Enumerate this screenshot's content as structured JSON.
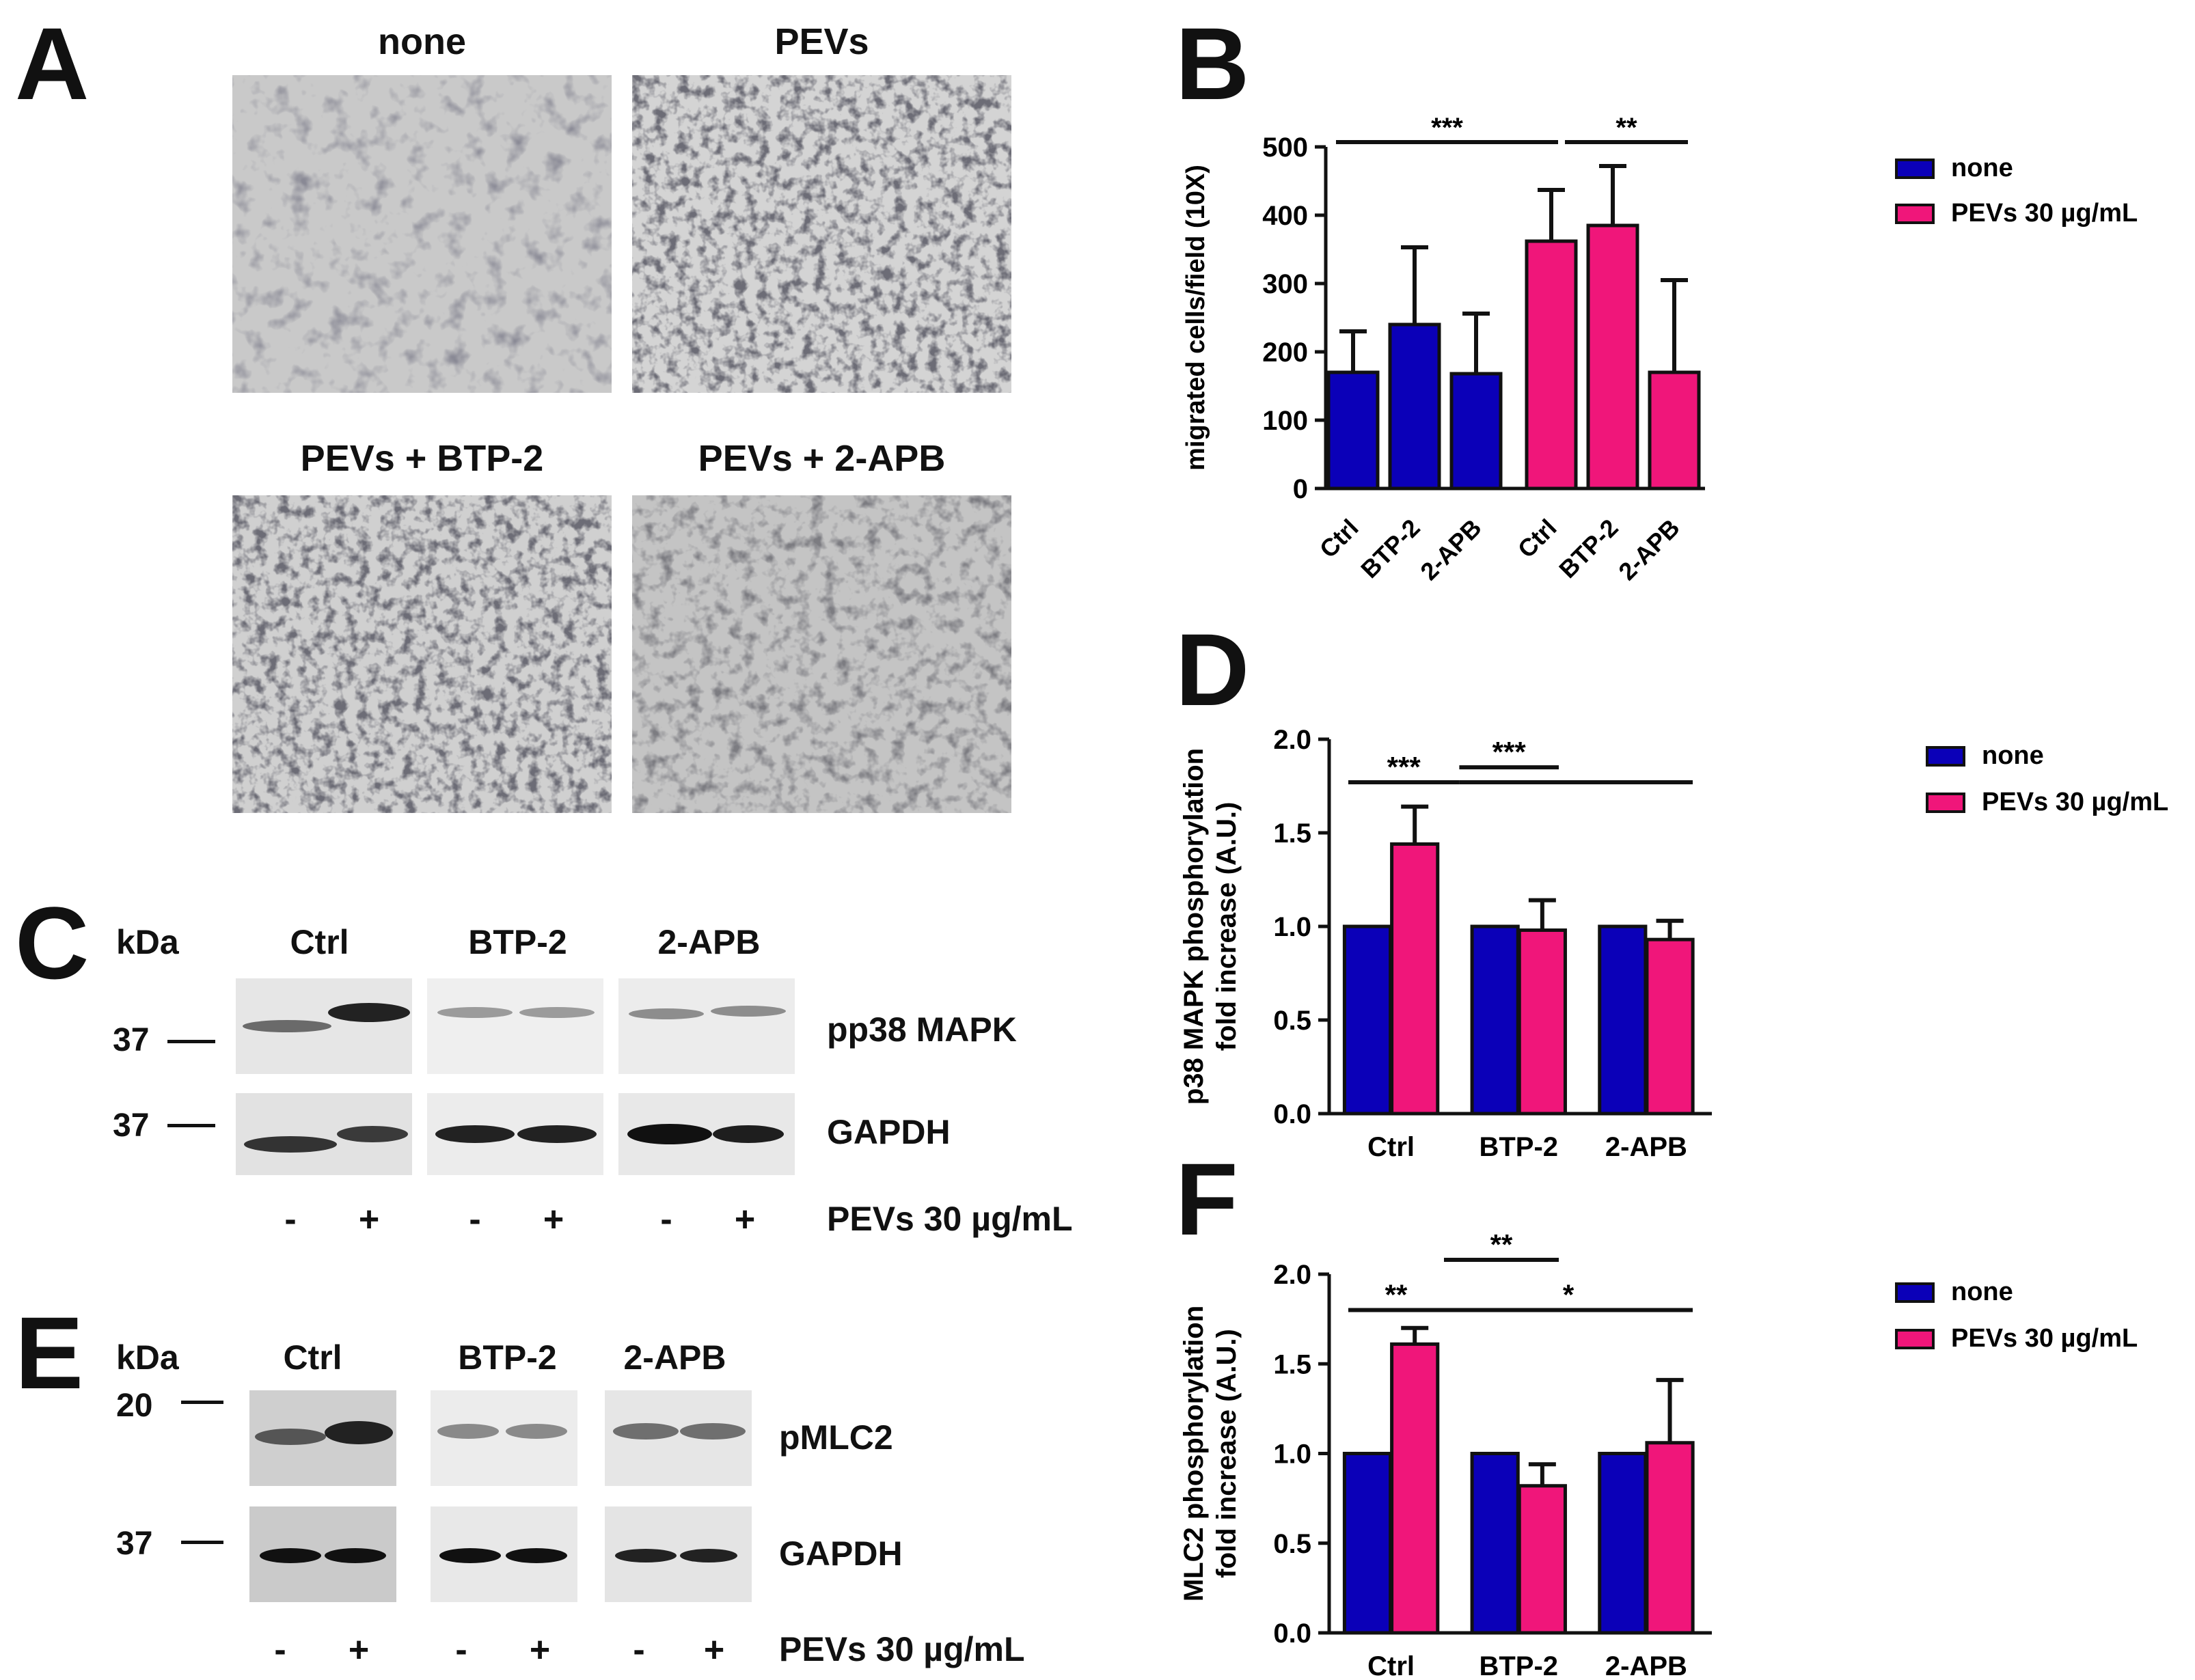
{
  "colors": {
    "none": "#0b00b8",
    "pevs": "#f0167a",
    "axis": "#111111"
  },
  "panelA": {
    "letter": "A",
    "titles": [
      "none",
      "PEVs",
      "PEVs + BTP-2",
      "PEVs + 2-APB"
    ]
  },
  "panelC": {
    "letter": "C",
    "kda": "kDa",
    "lanes": [
      "Ctrl",
      "BTP-2",
      "2-APB"
    ],
    "markers": [
      "37",
      "37"
    ],
    "bands": [
      "pp38 MAPK",
      "GAPDH"
    ],
    "signs": [
      "-",
      "+",
      "-",
      "+",
      "-",
      "+"
    ],
    "treatment": "PEVs 30 µg/mL"
  },
  "panelE": {
    "letter": "E",
    "kda": "kDa",
    "lanes": [
      "Ctrl",
      "BTP-2",
      "2-APB"
    ],
    "markers": [
      "20",
      "37"
    ],
    "bands": [
      "pMLC2",
      "GAPDH"
    ],
    "signs": [
      "-",
      "+",
      "-",
      "+",
      "-",
      "+"
    ],
    "treatment": "PEVs 30 µg/mL"
  },
  "chart_data": [
    {
      "panel": "B",
      "type": "bar",
      "ylabel": "migrated cells/field (10X)",
      "ylim": [
        0,
        500
      ],
      "yticks": [
        "0",
        "100",
        "200",
        "300",
        "400",
        "500"
      ],
      "categories": [
        "Ctrl",
        "BTP-2",
        "2-APB",
        "Ctrl",
        "BTP-2",
        "2-APB"
      ],
      "values": [
        170,
        240,
        168,
        362,
        385,
        170
      ],
      "errors": [
        60,
        113,
        88,
        75,
        87,
        135
      ],
      "groups": [
        "none",
        "none",
        "none",
        "pevs",
        "pevs",
        "pevs"
      ],
      "legend": [
        "none",
        "PEVs 30 µg/mL"
      ],
      "significance": [
        {
          "from": 0,
          "to": 3,
          "label": "***"
        },
        {
          "from": 3,
          "to": 5,
          "label": "**"
        }
      ]
    },
    {
      "panel": "D",
      "type": "bar",
      "ylabel": [
        "p38 MAPK phosphorylation",
        "fold increase (A.U.)"
      ],
      "ylim": [
        0,
        2
      ],
      "yticks": [
        "0.0",
        "0.5",
        "1.0",
        "1.5",
        "2.0"
      ],
      "categories": [
        "Ctrl",
        "BTP-2",
        "2-APB"
      ],
      "series": [
        {
          "name": "none",
          "values": [
            1.0,
            1.0,
            1.0
          ],
          "errors": [
            0,
            0,
            0
          ]
        },
        {
          "name": "PEVs 30 µg/mL",
          "values": [
            1.44,
            0.98,
            0.93
          ],
          "errors": [
            0.2,
            0.16,
            0.1
          ]
        }
      ],
      "significance": [
        {
          "label": "***",
          "x0": 0.05,
          "x1": 0.34,
          "y": 1.77
        },
        {
          "label": "***",
          "x0": 0.34,
          "x1": 0.6,
          "y": 1.85
        },
        {
          "label": "",
          "x0": 0.34,
          "x1": 0.95,
          "y": 1.77
        }
      ]
    },
    {
      "panel": "F",
      "type": "bar",
      "ylabel": [
        "MLC2 phosphorylation",
        "fold increase (A.U.)"
      ],
      "ylim": [
        0,
        2
      ],
      "yticks": [
        "0.0",
        "0.5",
        "1.0",
        "1.5",
        "2.0"
      ],
      "categories": [
        "Ctrl",
        "BTP-2",
        "2-APB"
      ],
      "series": [
        {
          "name": "none",
          "values": [
            1.0,
            1.0,
            1.0
          ],
          "errors": [
            0,
            0,
            0
          ]
        },
        {
          "name": "PEVs 30 µg/mL",
          "values": [
            1.61,
            0.82,
            1.06
          ],
          "errors": [
            0.09,
            0.12,
            0.35
          ]
        }
      ],
      "significance": [
        {
          "label": "**",
          "x0": 0.05,
          "x1": 0.3,
          "y": 1.8
        },
        {
          "label": "**",
          "x0": 0.3,
          "x1": 0.6,
          "y": 2.08
        },
        {
          "label": "*",
          "x0": 0.3,
          "x1": 0.95,
          "y": 1.8
        }
      ]
    }
  ]
}
